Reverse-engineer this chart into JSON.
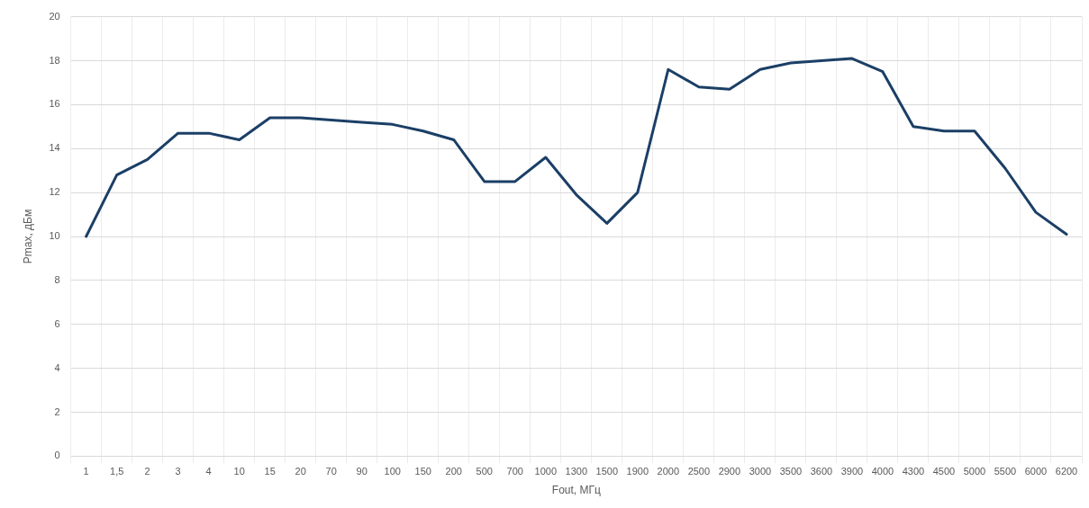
{
  "chart_data": {
    "type": "line",
    "xlabel": "Fout, МГц",
    "ylabel": "Pmax, дБм",
    "categories": [
      "1",
      "1,5",
      "2",
      "3",
      "4",
      "10",
      "15",
      "20",
      "70",
      "90",
      "100",
      "150",
      "200",
      "500",
      "700",
      "1000",
      "1300",
      "1500",
      "1900",
      "2000",
      "2500",
      "2900",
      "3000",
      "3500",
      "3600",
      "3900",
      "4000",
      "4300",
      "4500",
      "5000",
      "5500",
      "6000",
      "6200"
    ],
    "series": [
      {
        "color": "#1b3f66",
        "values": [
          10,
          12.8,
          13.5,
          14.7,
          14.7,
          14.4,
          15.4,
          15.4,
          15.3,
          15.2,
          15.1,
          14.8,
          14.4,
          12.5,
          12.5,
          13.6,
          11.9,
          10.6,
          12.0,
          17.6,
          16.8,
          16.7,
          17.6,
          17.9,
          18.0,
          18.1,
          17.5,
          15.0,
          14.8,
          14.8,
          13.1,
          11.1,
          10.1
        ]
      }
    ],
    "ylim": [
      0,
      20
    ],
    "yticks": [
      0,
      2,
      4,
      6,
      8,
      10,
      12,
      14,
      16,
      18,
      20
    ],
    "grid": true,
    "legend": false,
    "marker": "none",
    "line_style": "solid"
  }
}
